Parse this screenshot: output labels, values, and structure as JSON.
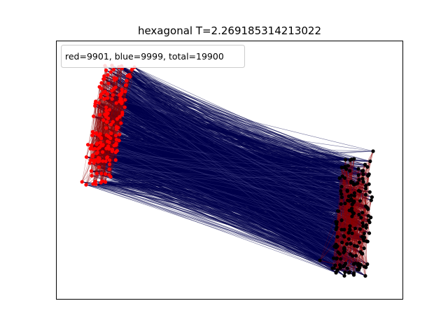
{
  "figure": {
    "title": "hexagonal T=2.269185314213022",
    "legend_text": "red=9901, blue=9999, total=19900"
  },
  "graph": {
    "layout": "two spring-layout clusters of nodes joined by a dense web of edges",
    "counts": {
      "red": 9901,
      "blue": 9999,
      "total": 19900
    },
    "clusters": [
      {
        "name": "left",
        "node_color": "#ff0000",
        "internal_edge_color": "#8b0000"
      },
      {
        "name": "right",
        "node_color": "#000000",
        "internal_edge_color": "#8b0000"
      }
    ],
    "cross_edge_color": "#00004d",
    "axes": {
      "ticks": "none",
      "frame": "black box"
    }
  },
  "colors": {
    "background": "#ffffff",
    "red_node": "#ff0000",
    "black_node": "#000000",
    "red_edge": "#8b0000",
    "blue_edge": "#00004d"
  }
}
